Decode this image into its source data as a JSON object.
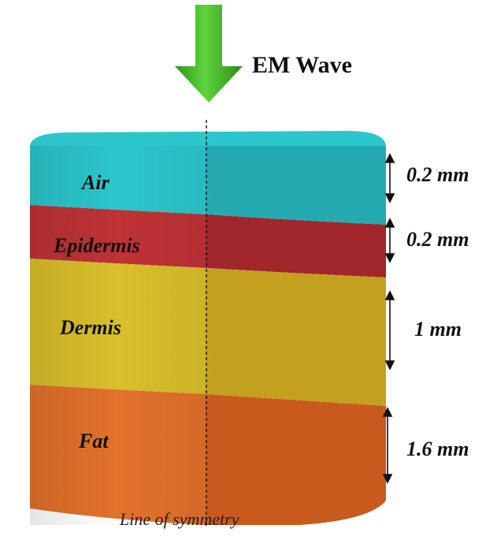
{
  "wave": {
    "label": "EM Wave",
    "color": "#37b01f"
  },
  "layers": [
    {
      "name": "Air",
      "thickness": "0.2 mm",
      "color": "#2bc6cc",
      "side_color": "#26aab2"
    },
    {
      "name": "Epidermis",
      "thickness": "0.2 mm",
      "color": "#bf3236",
      "side_color": "#a1272c"
    },
    {
      "name": "Dermis",
      "thickness": "1 mm",
      "color": "#d9bf2b",
      "side_color": "#c4a01f"
    },
    {
      "name": "Fat",
      "thickness": "1.6 mm",
      "color": "#e2712b",
      "side_color": "#c85a1e"
    }
  ],
  "symmetry_label": "Line of symmetry"
}
